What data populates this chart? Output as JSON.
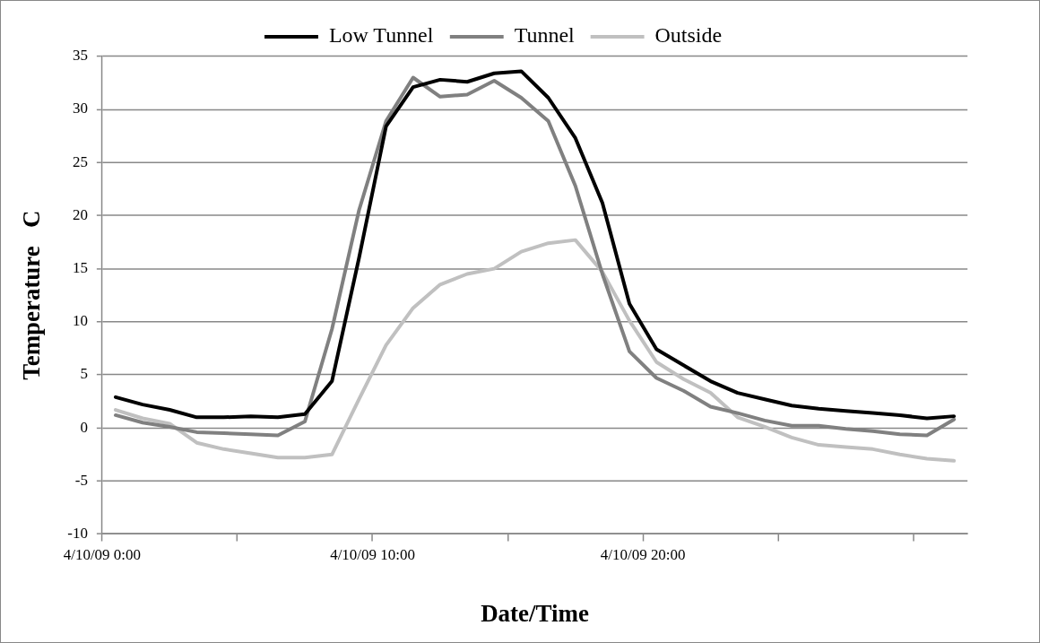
{
  "chart_data": {
    "type": "line",
    "xlabel": "Date/Time",
    "ylabel": "Temperature   C",
    "x": [
      "--04-10T00:30",
      "--04-10T01:30",
      "--04-10T02:30",
      "--04-10T03:30",
      "--04-10T04:30",
      "--04-10T05:30",
      "--04-10T06:30",
      "--04-10T07:30",
      "--04-10T08:30",
      "--04-10T09:30",
      "--04-10T10:30",
      "--04-10T11:30",
      "--04-10T12:30",
      "--04-10T13:30",
      "--04-10T14:30",
      "--04-10T15:30",
      "--04-10T16:30",
      "--04-10T17:30",
      "--04-10T18:30",
      "--04-10T19:30",
      "--04-10T20:30",
      "--04-10T21:30",
      "--04-10T22:30",
      "--04-10T23:30",
      "--04-11T00:30",
      "--04-11T01:30",
      "--04-11T02:30",
      "--04-11T03:30",
      "--04-11T04:30",
      "--04-11T05:30",
      "--04-11T06:30",
      "--04-11T07:30"
    ],
    "series": [
      {
        "name": "Low Tunnel",
        "color": "#000000",
        "values": [
          2.9,
          2.2,
          1.7,
          1.0,
          1.0,
          1.1,
          1.0,
          1.3,
          4.4,
          16,
          28.4,
          32.1,
          32.8,
          32.6,
          33.4,
          33.6,
          31.1,
          27.3,
          21.2,
          11.7,
          7.4,
          5.9,
          4.4,
          3.3,
          2.7,
          2.1,
          1.8,
          1.6,
          1.4,
          1.2,
          0.9,
          1.1
        ]
      },
      {
        "name": "Tunnel",
        "color": "#808080",
        "values": [
          1.2,
          0.5,
          0.1,
          -0.4,
          -0.5,
          -0.6,
          -0.7,
          0.6,
          9.3,
          20.5,
          28.9,
          33.0,
          31.2,
          31.4,
          32.7,
          31.1,
          28.9,
          22.8,
          14.5,
          7.2,
          4.7,
          3.5,
          2.0,
          1.4,
          0.7,
          0.2,
          0.2,
          -0.1,
          -0.3,
          -0.6,
          -0.7,
          0.8
        ]
      },
      {
        "name": "Outside",
        "color": "#c0c0c0",
        "values": [
          1.7,
          0.9,
          0.4,
          -1.4,
          -2.0,
          -2.4,
          -2.8,
          -2.8,
          -2.5,
          2.7,
          7.8,
          11.3,
          13.5,
          14.5,
          15.0,
          16.6,
          17.4,
          17.7,
          14.7,
          10.1,
          6.2,
          4.6,
          3.3,
          1.0,
          0.1,
          -0.9,
          -1.6,
          -1.8,
          -2.0,
          -2.5,
          -2.9,
          -3.1
        ]
      }
    ],
    "xlim": [
      "--04-10T00:00",
      "--04-11T08:00"
    ],
    "xticks": [
      {
        "value": "--04-10T00:00",
        "label": "4/10/09 0:00"
      },
      {
        "value": "--04-10T05:00",
        "label": null
      },
      {
        "value": "--04-10T10:00",
        "label": "4/10/09 10:00"
      },
      {
        "value": "--04-10T15:00",
        "label": null
      },
      {
        "value": "--04-10T20:00",
        "label": "4/10/09 20:00"
      },
      {
        "value": "--04-11T01:00",
        "label": null
      },
      {
        "value": "--04-11T06:00",
        "label": null
      }
    ],
    "ylim": [
      -10,
      35
    ],
    "yticks": [
      -10,
      -5,
      0,
      5,
      10,
      15,
      20,
      25,
      30,
      35
    ],
    "grid": "y",
    "legend": "top",
    "marker": "none",
    "line_style": "solid"
  }
}
